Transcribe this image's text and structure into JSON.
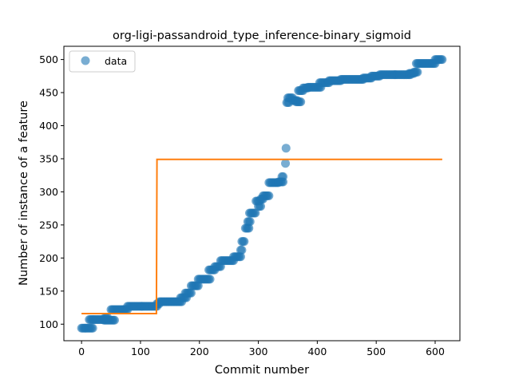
{
  "chart_data": {
    "type": "scatter",
    "title": "org-ligi-passandroid_type_inference-binary_sigmoid",
    "xlabel": "Commit number",
    "ylabel": "Number of instance of a feature",
    "xlim": [
      -30,
      642
    ],
    "ylim": [
      75,
      520
    ],
    "xticks": [
      0,
      100,
      200,
      300,
      400,
      500,
      600
    ],
    "yticks": [
      100,
      150,
      200,
      250,
      300,
      350,
      400,
      450,
      500
    ],
    "legend": {
      "position": "top-left",
      "entries": [
        "data"
      ]
    },
    "colors": {
      "data": "#1f77b4",
      "fit": "#ff7f0e"
    },
    "series": [
      {
        "name": "data",
        "kind": "scatter",
        "segments": [
          [
            0,
            6,
            94
          ],
          [
            7,
            19,
            94
          ],
          [
            13,
            19,
            107
          ],
          [
            20,
            38,
            107
          ],
          [
            38,
            56,
            106
          ],
          [
            40,
            44,
            110
          ],
          [
            50,
            72,
            122
          ],
          [
            72,
            78,
            122
          ],
          [
            78,
            102,
            127
          ],
          [
            102,
            128,
            127
          ],
          [
            128,
            132,
            131
          ],
          [
            132,
            170,
            134
          ],
          [
            168,
            178,
            140
          ],
          [
            176,
            186,
            147
          ],
          [
            186,
            198,
            158
          ],
          [
            198,
            218,
            168
          ],
          [
            216,
            226,
            182
          ],
          [
            226,
            236,
            187
          ],
          [
            236,
            258,
            196
          ],
          [
            258,
            270,
            202
          ],
          [
            270,
            272,
            212
          ],
          [
            272,
            276,
            225
          ],
          [
            278,
            284,
            245
          ],
          [
            282,
            286,
            255
          ],
          [
            285,
            296,
            268
          ],
          [
            296,
            302,
            286
          ],
          [
            300,
            304,
            278
          ],
          [
            304,
            308,
            289
          ],
          [
            308,
            318,
            294
          ],
          [
            318,
            334,
            314
          ],
          [
            334,
            342,
            315
          ],
          [
            340,
            343,
            323
          ],
          [
            346,
            346,
            343
          ],
          [
            347,
            347,
            366
          ],
          [
            348,
            352,
            435
          ],
          [
            350,
            358,
            442
          ],
          [
            358,
            366,
            438
          ],
          [
            364,
            372,
            436
          ],
          [
            368,
            376,
            453
          ],
          [
            376,
            384,
            457
          ],
          [
            384,
            406,
            458
          ],
          [
            404,
            420,
            465
          ],
          [
            420,
            440,
            468
          ],
          [
            440,
            478,
            470
          ],
          [
            478,
            492,
            472
          ],
          [
            492,
            506,
            475
          ],
          [
            506,
            532,
            477
          ],
          [
            532,
            558,
            477
          ],
          [
            556,
            564,
            479
          ],
          [
            564,
            570,
            481
          ],
          [
            568,
            600,
            494
          ],
          [
            600,
            612,
            500
          ]
        ]
      },
      {
        "name": "fit",
        "kind": "line",
        "points": [
          [
            0,
            116
          ],
          [
            127,
            116
          ],
          [
            128,
            349
          ],
          [
            612,
            349
          ]
        ]
      }
    ]
  }
}
